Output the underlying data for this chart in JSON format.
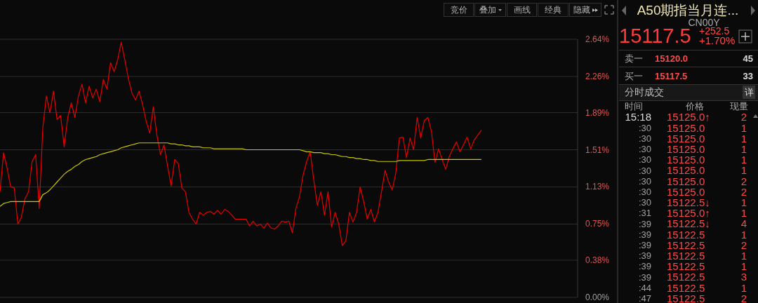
{
  "chart_data": [
    {
      "type": "line",
      "categories": [
        null,
        null,
        null,
        null,
        null,
        null,
        null,
        null,
        null,
        null,
        null,
        null,
        null,
        null,
        null,
        null,
        null,
        null,
        null,
        null,
        null,
        null,
        null,
        null,
        null,
        null,
        null,
        null,
        null,
        null,
        null,
        null,
        null,
        null,
        null,
        null,
        null,
        null,
        null,
        null,
        null,
        null,
        null,
        null,
        null,
        null,
        null,
        null,
        null,
        null,
        null,
        null,
        null,
        null,
        null,
        null,
        null,
        null,
        null,
        null,
        null,
        null,
        null,
        null,
        null,
        null,
        null,
        null,
        null,
        null,
        null,
        null,
        null,
        null,
        null,
        null,
        null,
        null,
        null,
        null,
        null,
        null,
        null,
        null,
        null,
        null,
        null,
        null,
        null,
        null,
        null,
        null,
        null,
        null,
        null,
        null,
        null,
        null,
        null,
        null,
        null,
        null,
        null,
        null,
        null,
        null,
        null,
        null,
        null,
        null,
        null,
        null,
        null,
        null,
        null,
        null,
        null,
        null,
        null,
        null,
        null,
        null,
        null,
        null,
        null,
        null,
        null,
        null,
        null,
        null,
        null,
        null,
        null,
        null,
        null,
        null,
        null,
        null,
        null,
        null,
        null,
        null,
        null,
        null,
        null,
        null,
        null,
        null,
        null,
        null,
        null,
        null,
        null,
        null,
        null,
        null,
        null,
        null,
        null,
        null,
        null,
        null,
        null
      ],
      "series": [
        {
          "color": "#e80000",
          "values": [
            1.08,
            1.48,
            1.32,
            1.13,
            1.12,
            0.75,
            0.82,
            1.01,
            1.08,
            1.39,
            1.46,
            0.91,
            1.73,
            2.06,
            1.89,
            2.11,
            1.82,
            1.86,
            1.54,
            1.84,
            1.99,
            1.84,
            2.06,
            2.18,
            1.99,
            2.16,
            2.04,
            2.13,
            2.0,
            2.23,
            2.13,
            2.4,
            2.31,
            2.43,
            2.61,
            2.43,
            2.24,
            2.09,
            2.02,
            2.11,
            1.97,
            1.8,
            1.68,
            1.95,
            1.66,
            1.46,
            1.56,
            1.34,
            1.14,
            1.41,
            1.37,
            1.12,
            1.08,
            0.87,
            0.8,
            0.75,
            0.87,
            0.84,
            0.87,
            0.88,
            0.85,
            0.89,
            0.85,
            0.9,
            0.88,
            0.84,
            0.8,
            0.8,
            0.8,
            0.8,
            0.73,
            0.78,
            0.73,
            0.75,
            0.71,
            0.76,
            0.71,
            0.7,
            0.73,
            0.78,
            0.77,
            0.78,
            0.66,
            0.91,
            1.03,
            1.25,
            1.39,
            1.49,
            1.2,
            0.94,
            1.08,
            0.84,
            1.08,
            0.72,
            0.87,
            0.75,
            0.53,
            0.58,
            0.87,
            0.77,
            0.87,
            1.13,
            0.98,
            0.8,
            0.9,
            0.77,
            0.87,
            1.08,
            1.3,
            1.18,
            1.1,
            1.27,
            1.63,
            1.64,
            1.43,
            1.63,
            1.51,
            1.84,
            1.63,
            1.81,
            1.84,
            1.7,
            1.38,
            1.52,
            1.41,
            1.31,
            1.44,
            1.52,
            1.59,
            1.49,
            1.56,
            1.64,
            1.52,
            1.61,
            1.66,
            1.71,
            null,
            null,
            null,
            null,
            null,
            null,
            null,
            null,
            null,
            null,
            null,
            null,
            null,
            null,
            null,
            null,
            null,
            null,
            null,
            null,
            null,
            null,
            null,
            null,
            null,
            null,
            null
          ]
        },
        {
          "color": "#c8c800",
          "values": [
            0.93,
            0.96,
            0.97,
            0.98,
            0.98,
            0.98,
            0.98,
            0.98,
            0.98,
            0.98,
            0.98,
            0.98,
            1.05,
            1.07,
            1.1,
            1.14,
            1.18,
            1.22,
            1.26,
            1.29,
            1.31,
            1.34,
            1.36,
            1.39,
            1.41,
            1.42,
            1.43,
            1.44,
            1.46,
            1.47,
            1.48,
            1.49,
            1.5,
            1.51,
            1.53,
            1.54,
            1.55,
            1.56,
            1.57,
            1.58,
            1.58,
            1.58,
            1.58,
            1.58,
            1.58,
            1.58,
            1.58,
            1.58,
            1.57,
            1.57,
            1.56,
            1.56,
            1.55,
            1.55,
            1.54,
            1.54,
            1.54,
            1.53,
            1.53,
            1.53,
            1.52,
            1.52,
            1.52,
            1.52,
            1.52,
            1.52,
            1.52,
            1.52,
            1.52,
            1.51,
            1.51,
            1.51,
            1.51,
            1.51,
            1.51,
            1.51,
            1.51,
            1.51,
            1.51,
            1.51,
            1.51,
            1.51,
            1.51,
            1.51,
            1.51,
            1.5,
            1.49,
            1.49,
            1.48,
            1.48,
            1.48,
            1.47,
            1.47,
            1.46,
            1.46,
            1.45,
            1.44,
            1.44,
            1.43,
            1.43,
            1.42,
            1.42,
            1.41,
            1.41,
            1.4,
            1.4,
            1.39,
            1.39,
            1.39,
            1.39,
            1.39,
            1.39,
            1.4,
            1.4,
            1.4,
            1.4,
            1.4,
            1.4,
            1.4,
            1.4,
            1.41,
            1.41,
            1.41,
            1.41,
            1.41,
            1.41,
            1.41,
            1.41,
            1.41,
            1.41,
            1.41,
            1.41,
            1.41,
            1.41,
            1.41,
            1.41,
            null,
            null,
            null,
            null,
            null,
            null,
            null,
            null,
            null,
            null,
            null,
            null,
            null,
            null,
            null,
            null,
            null,
            null,
            null,
            null,
            null,
            null,
            null,
            null,
            null,
            null,
            null
          ]
        }
      ],
      "ylim": [
        0,
        2.64
      ],
      "yticks": [
        {
          "value": 0,
          "label": "0.00%"
        },
        {
          "value": 0.38,
          "label": "0.38%"
        },
        {
          "value": 0.75,
          "label": "0.75%"
        },
        {
          "value": 1.13,
          "label": "1.13%"
        },
        {
          "value": 1.51,
          "label": "1.51%"
        },
        {
          "value": 1.89,
          "label": "1.89%"
        },
        {
          "value": 2.26,
          "label": "2.26%"
        },
        {
          "value": 2.64,
          "label": "2.64%"
        }
      ],
      "grid": "y",
      "annotations": [
        "竞价",
        "叠加",
        "画线",
        "经典",
        "隐藏"
      ]
    },
    {
      "type": "other",
      "title": "A50期指当月连...",
      "subtitle": "CN00Y",
      "annotations": [
        "15117.5",
        "+252.5",
        "+1.70%",
        "卖一",
        "15120.0",
        "45",
        "买一",
        "15117.5",
        "33",
        "分时成交",
        "详",
        "时间",
        "价格",
        "现量",
        "15:18",
        "15125.0↑",
        "2",
        ":30",
        "15125.0",
        "1",
        ":30",
        "15125.0",
        "1",
        ":30",
        "15125.0",
        "1",
        ":30",
        "15125.0",
        "1",
        ":30",
        "15125.0",
        "1",
        ":30",
        "15125.0",
        "2",
        ":30",
        "15125.0",
        "2",
        ":30",
        "15122.5↓",
        "1",
        ":31",
        "15125.0↑",
        "1",
        ":39",
        "15122.5↓",
        "4",
        ":39",
        "15122.5",
        "1",
        ":39",
        "15122.5",
        "2",
        ":39",
        "15122.5",
        "1",
        ":39",
        "15122.5",
        "1",
        ":39",
        "15122.5",
        "3",
        ":44",
        "15122.5",
        "1",
        ":47",
        "15122.5",
        "2"
      ]
    }
  ]
}
